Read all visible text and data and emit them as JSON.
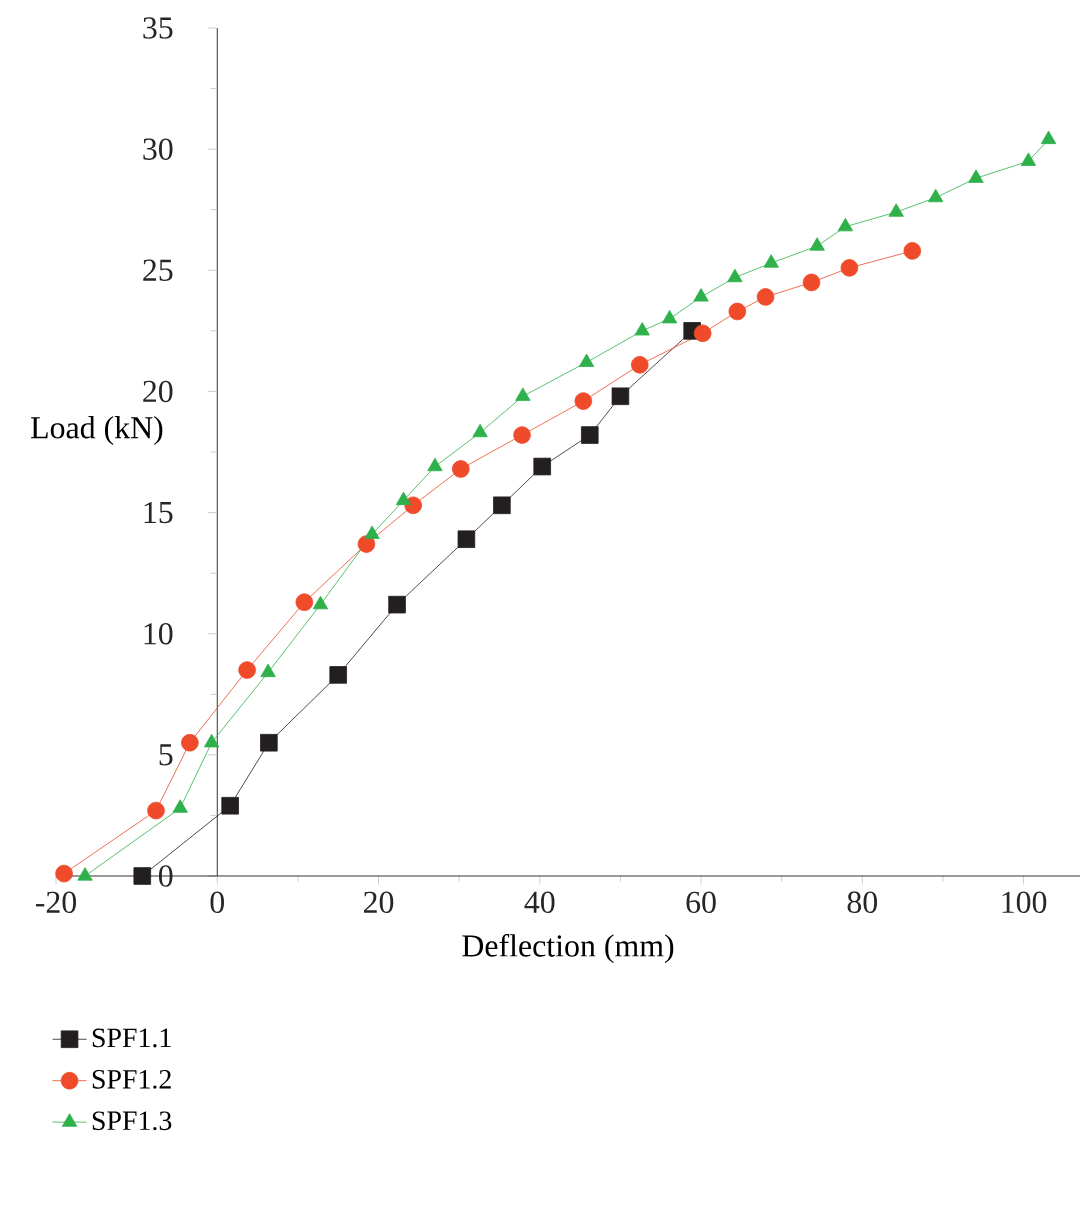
{
  "chart_data": {
    "type": "line",
    "xlabel": "Deflection (mm)",
    "ylabel": "Load (kN)",
    "xlim": [
      -20,
      107
    ],
    "ylim": [
      0,
      35
    ],
    "xticks": [
      -20,
      0,
      20,
      40,
      60,
      80,
      100
    ],
    "yticks": [
      0,
      5,
      10,
      15,
      20,
      25,
      30,
      35
    ],
    "legend": "bottom left",
    "line_style": "solid",
    "series": [
      {
        "name": "SPF1.1",
        "color": "#231f20",
        "marker": "square",
        "x": [
          -9.3,
          1.6,
          6.4,
          15.0,
          22.3,
          30.9,
          35.3,
          40.3,
          46.2,
          50.0,
          58.9
        ],
        "values": [
          0,
          2.9,
          5.5,
          8.3,
          11.2,
          13.9,
          15.3,
          16.9,
          18.2,
          19.8,
          22.5
        ]
      },
      {
        "name": "SPF1.2",
        "color": "#ef4b2b",
        "marker": "circle",
        "x": [
          -19.0,
          -7.6,
          -3.4,
          3.7,
          10.8,
          18.5,
          24.3,
          30.2,
          37.8,
          45.4,
          52.4,
          60.2,
          64.5,
          68.0,
          73.7,
          78.4,
          86.2
        ],
        "values": [
          0.1,
          2.7,
          5.5,
          8.5,
          11.3,
          13.7,
          15.3,
          16.8,
          18.2,
          19.6,
          21.1,
          22.4,
          23.3,
          23.9,
          24.5,
          25.1,
          25.8
        ]
      },
      {
        "name": "SPF1.3",
        "color": "#2eb14b",
        "marker": "triangle",
        "x": [
          -16.4,
          -4.6,
          -0.7,
          6.3,
          12.8,
          19.2,
          23.1,
          27.0,
          32.6,
          37.9,
          45.8,
          52.7,
          56.1,
          60.0,
          64.2,
          68.7,
          74.4,
          77.9,
          84.2,
          89.1,
          94.1,
          100.6,
          103.1
        ],
        "values": [
          0,
          2.8,
          5.5,
          8.4,
          11.2,
          14.1,
          15.5,
          16.9,
          18.3,
          19.8,
          21.2,
          22.5,
          23.0,
          23.9,
          24.7,
          25.3,
          26.0,
          26.8,
          27.4,
          28.0,
          28.8,
          29.5,
          30.4
        ]
      }
    ]
  }
}
